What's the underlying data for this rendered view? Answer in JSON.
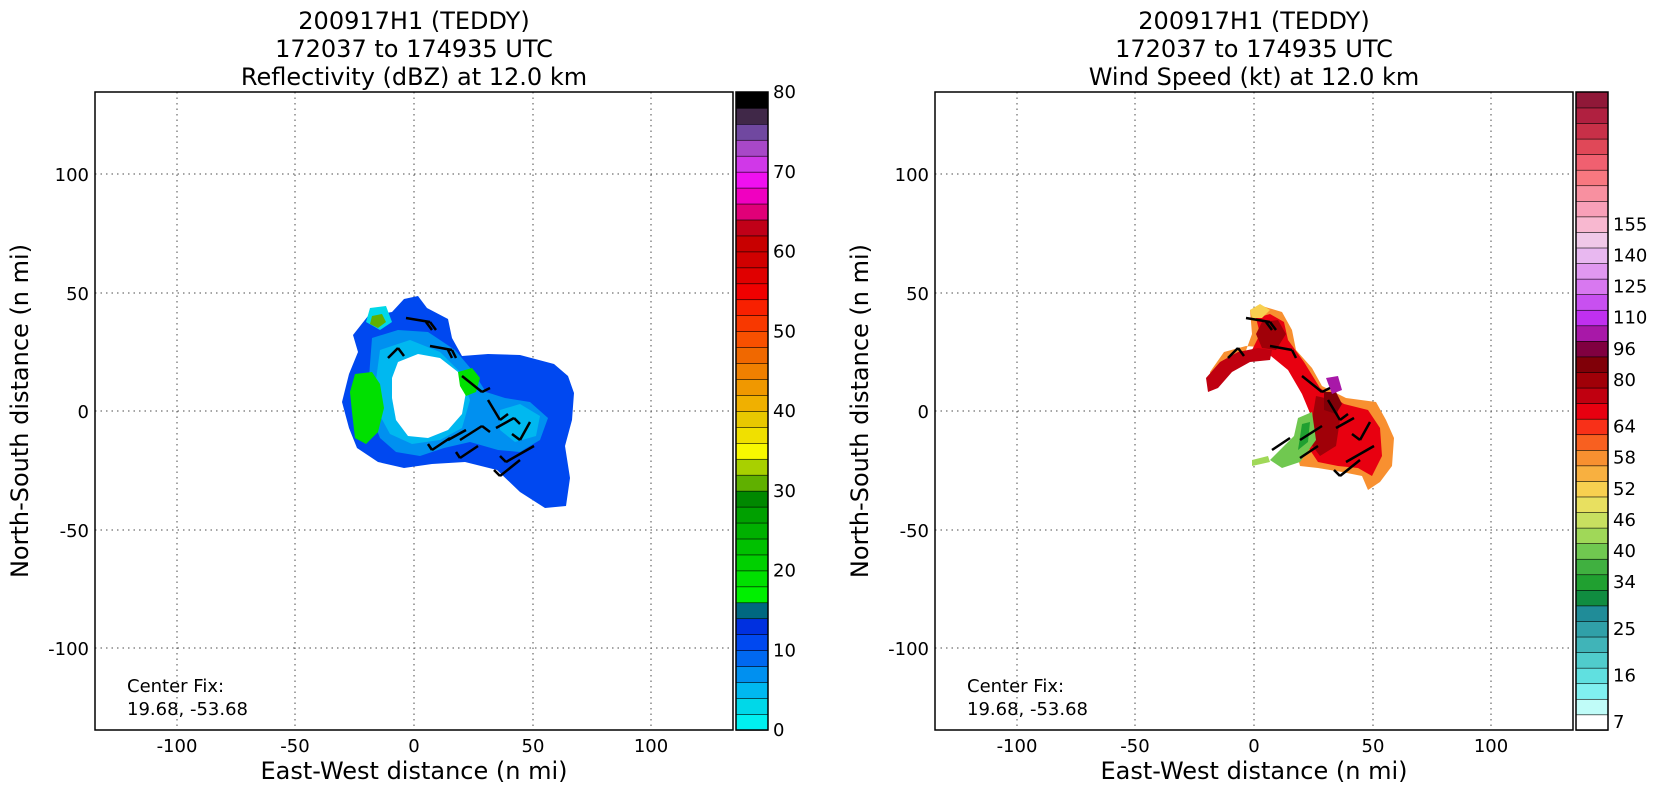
{
  "chart_data": [
    {
      "type": "heatmap",
      "title": [
        "200917H1 (TEDDY)",
        "172037 to 174935 UTC",
        "Reflectivity (dBZ) at 12.0 km"
      ],
      "xlabel": "East-West distance (n mi)",
      "ylabel": "North-South distance (n mi)",
      "xlim": [
        -135,
        135
      ],
      "ylim": [
        -135,
        135
      ],
      "xticks": [
        -100,
        -50,
        0,
        50,
        100
      ],
      "yticks": [
        -100,
        -50,
        0,
        50,
        100
      ],
      "grid": true,
      "annotation": [
        "Center Fix:",
        "19.68, -53.68"
      ],
      "colorbar": {
        "range": [
          0,
          80
        ],
        "tick_values": [
          0,
          10,
          20,
          30,
          40,
          50,
          60,
          70,
          80
        ],
        "tick_labels": [
          "0",
          "10",
          "20",
          "30",
          "40",
          "50",
          "60",
          "70",
          "80"
        ],
        "colors": [
          "#00f0f0",
          "#00d8e8",
          "#00b8f0",
          "#0090f0",
          "#0068f0",
          "#0048f0",
          "#0030e0",
          "#006880",
          "#00f000",
          "#00e000",
          "#00d000",
          "#00c000",
          "#00b000",
          "#00a000",
          "#008800",
          "#60b000",
          "#a8d000",
          "#f8f800",
          "#f0e000",
          "#e8c800",
          "#f0b000",
          "#f09800",
          "#f08000",
          "#f06800",
          "#f85000",
          "#f83800",
          "#f82000",
          "#f00000",
          "#e00000",
          "#d00000",
          "#c80000",
          "#c00018",
          "#e00078",
          "#f000c0",
          "#f010f0",
          "#d038e8",
          "#a848c8",
          "#7048a0",
          "#402848",
          "#000000"
        ]
      }
    },
    {
      "type": "heatmap",
      "title": [
        "200917H1 (TEDDY)",
        "172037 to 174935 UTC",
        "Wind Speed (kt) at 12.0 km"
      ],
      "xlabel": "East-West distance (n mi)",
      "ylabel": "North-South distance (n mi)",
      "xlim": [
        -135,
        135
      ],
      "ylim": [
        -135,
        135
      ],
      "xticks": [
        -100,
        -50,
        0,
        50,
        100
      ],
      "yticks": [
        -100,
        -50,
        0,
        50,
        100
      ],
      "grid": true,
      "annotation": [
        "Center Fix:",
        "19.68, -53.68"
      ],
      "colorbar": {
        "tick_labels": [
          "7",
          "16",
          "25",
          "34",
          "40",
          "46",
          "52",
          "58",
          "64",
          "80",
          "96",
          "110",
          "125",
          "140",
          "155"
        ],
        "tick_index": [
          0,
          3,
          6,
          9,
          11,
          13,
          15,
          17,
          19,
          22,
          24,
          26,
          28,
          30,
          32
        ],
        "colors": [
          "#ffffff",
          "#c0fcf8",
          "#80f0f0",
          "#60e0e0",
          "#50cccc",
          "#40b4b8",
          "#30a0a8",
          "#208c98",
          "#108c40",
          "#20a030",
          "#40b040",
          "#70c850",
          "#a0d858",
          "#c8e060",
          "#e8e060",
          "#f8d050",
          "#f8b040",
          "#f89030",
          "#f86020",
          "#f83018",
          "#e80010",
          "#c00010",
          "#a00008",
          "#800008",
          "#800040",
          "#a818a8",
          "#c030f0",
          "#c850f0",
          "#d878f0",
          "#e098f0",
          "#e8b8f0",
          "#f0c8e8",
          "#f8b8d0",
          "#f8a0b8",
          "#f890a0",
          "#f87880",
          "#f06070",
          "#e04858",
          "#c83048",
          "#b02040",
          "#901838"
        ]
      }
    }
  ]
}
